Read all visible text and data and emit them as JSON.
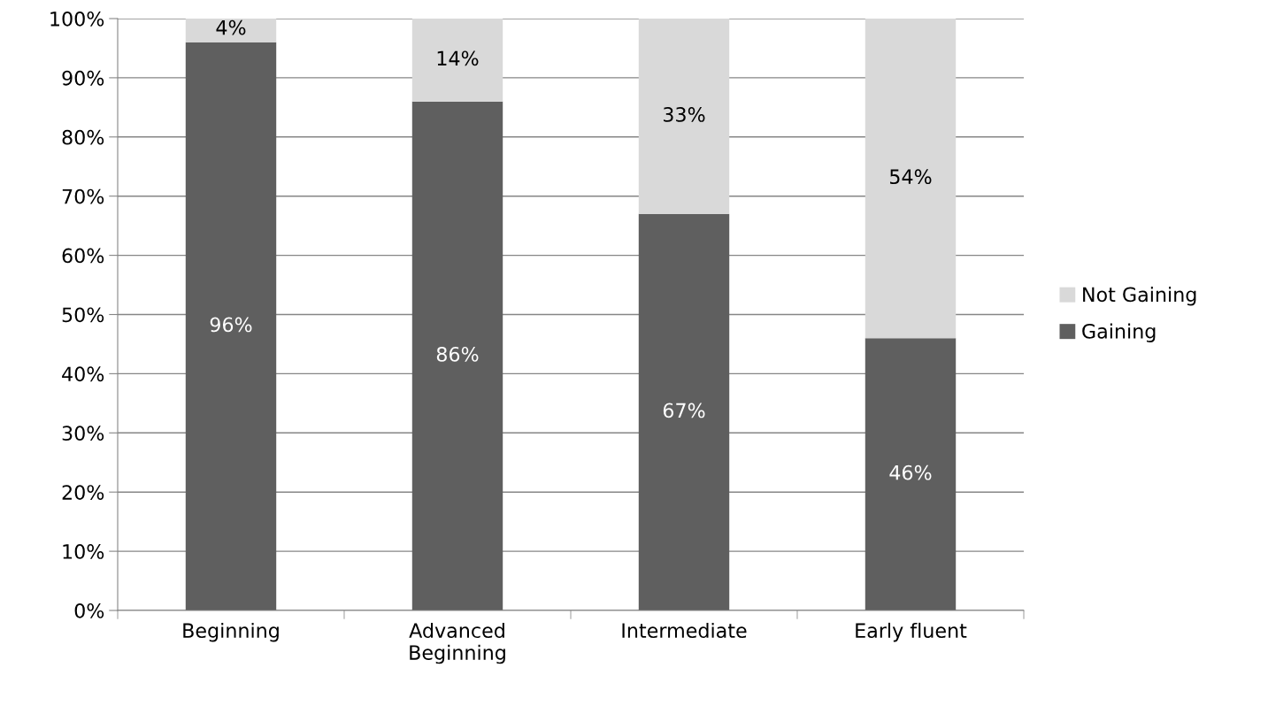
{
  "chart_data": {
    "type": "bar",
    "stacked": true,
    "categories": [
      "Beginning",
      "Advanced\nBeginning",
      "Intermediate",
      "Early fluent"
    ],
    "series": [
      {
        "name": "Gaining",
        "color": "#5f5f5f",
        "values": [
          96,
          86,
          67,
          46
        ],
        "value_labels": [
          "96%",
          "86%",
          "67%",
          "46%"
        ]
      },
      {
        "name": "Not Gaining",
        "color": "#d9d9d9",
        "values": [
          4,
          14,
          33,
          54
        ],
        "value_labels": [
          "4%",
          "14%",
          "33%",
          "54%"
        ]
      }
    ],
    "ylim": [
      0,
      100
    ],
    "yticks": [
      {
        "value": 0,
        "label": "0%"
      },
      {
        "value": 10,
        "label": "10%"
      },
      {
        "value": 20,
        "label": "20%"
      },
      {
        "value": 30,
        "label": "30%"
      },
      {
        "value": 40,
        "label": "40%"
      },
      {
        "value": 50,
        "label": "50%"
      },
      {
        "value": 60,
        "label": "60%"
      },
      {
        "value": 70,
        "label": "70%"
      },
      {
        "value": 80,
        "label": "80%"
      },
      {
        "value": 90,
        "label": "90%"
      },
      {
        "value": 100,
        "label": "100%"
      }
    ],
    "grid": "y",
    "legend": "right"
  }
}
